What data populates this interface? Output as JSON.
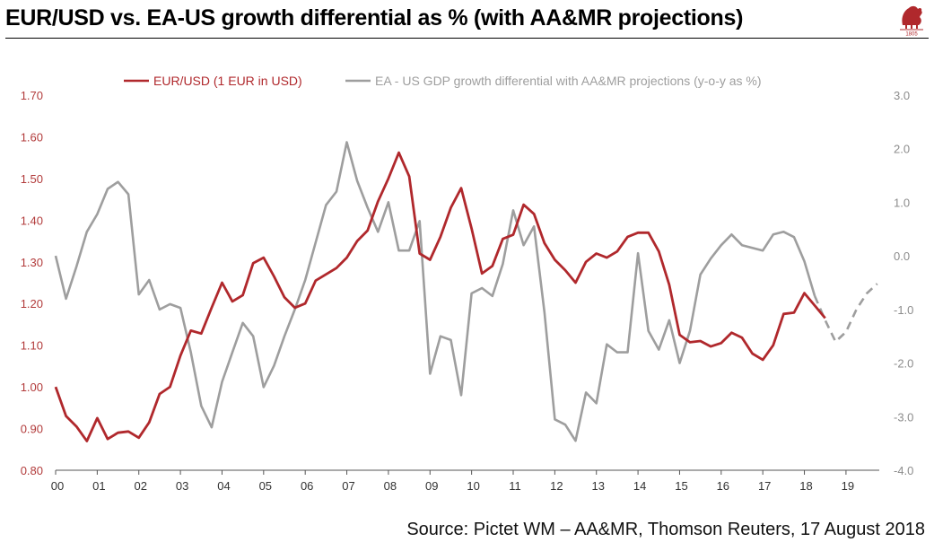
{
  "title": "EUR/USD vs. EA-US growth differential as % (with AA&MR projections)",
  "source": "Source: Pictet WM – AA&MR, Thomson Reuters, 17 August 2018",
  "logo": {
    "year": "1805",
    "icon": "lion-crest-icon"
  },
  "colors": {
    "eurusd": "#b0282c",
    "gdp": "#9e9e9e",
    "left_axis": "#b23b3b",
    "right_axis": "#8c8c8c"
  },
  "chart_data": {
    "type": "line",
    "title": "EUR/USD vs. EA-US growth differential as % (with AA&MR projections)",
    "xlabel": "",
    "x_ticks": [
      "00",
      "01",
      "02",
      "03",
      "04",
      "05",
      "06",
      "07",
      "08",
      "09",
      "10",
      "11",
      "12",
      "13",
      "14",
      "15",
      "16",
      "17",
      "18",
      "19"
    ],
    "xlim": [
      2000,
      2019.8
    ],
    "left_axis": {
      "ylim": [
        0.8,
        1.7
      ],
      "ticks": [
        "0.80",
        "0.90",
        "1.00",
        "1.10",
        "1.20",
        "1.30",
        "1.40",
        "1.50",
        "1.60",
        "1.70"
      ]
    },
    "right_axis": {
      "ylim": [
        -4.0,
        3.0
      ],
      "ticks": [
        "-4.0",
        "-3.0",
        "-2.0",
        "-1.0",
        "0.0",
        "1.0",
        "2.0",
        "3.0"
      ]
    },
    "legend_position": "top",
    "series": [
      {
        "name": "EUR/USD (1 EUR in USD)",
        "axis": "left",
        "x": [
          2000.0,
          2000.25,
          2000.5,
          2000.75,
          2001.0,
          2001.25,
          2001.5,
          2001.75,
          2002.0,
          2002.25,
          2002.5,
          2002.75,
          2003.0,
          2003.25,
          2003.5,
          2003.75,
          2004.0,
          2004.25,
          2004.5,
          2004.75,
          2005.0,
          2005.25,
          2005.5,
          2005.75,
          2006.0,
          2006.25,
          2006.5,
          2006.75,
          2007.0,
          2007.25,
          2007.5,
          2007.75,
          2008.0,
          2008.25,
          2008.5,
          2008.75,
          2009.0,
          2009.25,
          2009.5,
          2009.75,
          2010.0,
          2010.25,
          2010.5,
          2010.75,
          2011.0,
          2011.25,
          2011.5,
          2011.75,
          2012.0,
          2012.25,
          2012.5,
          2012.75,
          2013.0,
          2013.25,
          2013.5,
          2013.75,
          2014.0,
          2014.25,
          2014.5,
          2014.75,
          2015.0,
          2015.25,
          2015.5,
          2015.75,
          2016.0,
          2016.25,
          2016.5,
          2016.75,
          2017.0,
          2017.25,
          2017.5,
          2017.75,
          2018.0,
          2018.25,
          2018.5
        ],
        "values": [
          1.0,
          0.93,
          0.905,
          0.87,
          0.925,
          0.875,
          0.89,
          0.893,
          0.878,
          0.915,
          0.983,
          1.0,
          1.075,
          1.135,
          1.128,
          1.19,
          1.25,
          1.205,
          1.22,
          1.297,
          1.31,
          1.265,
          1.215,
          1.19,
          1.2,
          1.255,
          1.27,
          1.285,
          1.31,
          1.35,
          1.375,
          1.445,
          1.5,
          1.562,
          1.505,
          1.32,
          1.305,
          1.36,
          1.43,
          1.477,
          1.38,
          1.272,
          1.29,
          1.355,
          1.365,
          1.437,
          1.415,
          1.345,
          1.305,
          1.28,
          1.25,
          1.3,
          1.32,
          1.31,
          1.325,
          1.36,
          1.37,
          1.37,
          1.325,
          1.245,
          1.125,
          1.107,
          1.11,
          1.097,
          1.105,
          1.13,
          1.118,
          1.08,
          1.065,
          1.1,
          1.175,
          1.178,
          1.225,
          1.195,
          1.165
        ]
      },
      {
        "name": "EA - US GDP growth differential with AA&MR projections (y-o-y as %)",
        "axis": "right",
        "x": [
          2000.0,
          2000.25,
          2000.5,
          2000.75,
          2001.0,
          2001.25,
          2001.5,
          2001.75,
          2002.0,
          2002.25,
          2002.5,
          2002.75,
          2003.0,
          2003.25,
          2003.5,
          2003.75,
          2004.0,
          2004.25,
          2004.5,
          2004.75,
          2005.0,
          2005.25,
          2005.5,
          2005.75,
          2006.0,
          2006.25,
          2006.5,
          2006.75,
          2007.0,
          2007.25,
          2007.5,
          2007.75,
          2008.0,
          2008.25,
          2008.5,
          2008.75,
          2009.0,
          2009.25,
          2009.5,
          2009.75,
          2010.0,
          2010.25,
          2010.5,
          2010.75,
          2011.0,
          2011.25,
          2011.5,
          2011.75,
          2012.0,
          2012.25,
          2012.5,
          2012.75,
          2013.0,
          2013.25,
          2013.5,
          2013.75,
          2014.0,
          2014.25,
          2014.5,
          2014.75,
          2015.0,
          2015.25,
          2015.5,
          2015.75,
          2016.0,
          2016.25,
          2016.5,
          2016.75,
          2017.0,
          2017.25,
          2017.5,
          2017.75,
          2018.0,
          2018.25
        ],
        "values": [
          0.0,
          -0.8,
          -0.2,
          0.45,
          0.78,
          1.25,
          1.38,
          1.15,
          -0.72,
          -0.45,
          -1.0,
          -0.9,
          -0.97,
          -1.8,
          -2.8,
          -3.2,
          -2.35,
          -1.8,
          -1.25,
          -1.5,
          -2.45,
          -2.05,
          -1.5,
          -1.0,
          -0.45,
          0.25,
          0.95,
          1.2,
          2.12,
          1.4,
          0.9,
          0.45,
          1.0,
          0.1,
          0.1,
          0.65,
          -2.2,
          -1.5,
          -1.57,
          -2.6,
          -0.7,
          -0.6,
          -0.75,
          -0.15,
          0.85,
          0.2,
          0.55,
          -1.05,
          -3.05,
          -3.15,
          -3.45,
          -2.55,
          -2.75,
          -1.65,
          -1.8,
          -1.8,
          0.05,
          -1.4,
          -1.75,
          -1.2,
          -2.0,
          -1.4,
          -0.35,
          -0.05,
          0.2,
          0.4,
          0.2,
          0.15,
          0.1,
          0.4,
          0.45,
          0.35,
          -0.1,
          -0.75
        ],
        "projection": {
          "style": "dashed",
          "x": [
            2018.25,
            2018.5,
            2018.75,
            2019.0,
            2019.25,
            2019.5,
            2019.75
          ],
          "values": [
            -0.75,
            -1.2,
            -1.6,
            -1.42,
            -1.0,
            -0.7,
            -0.52
          ]
        }
      }
    ]
  }
}
